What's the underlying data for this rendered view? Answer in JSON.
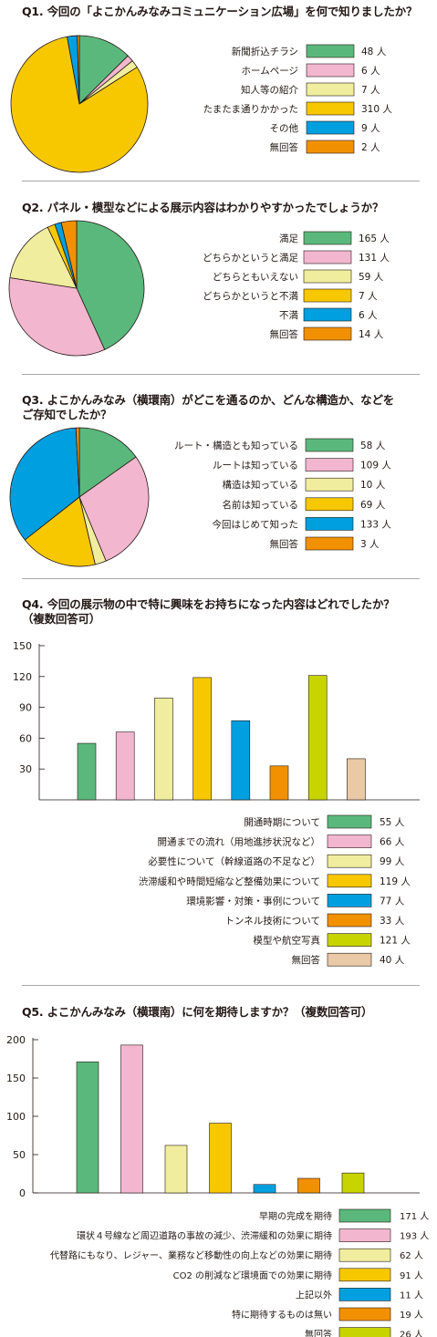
{
  "colors": {
    "green": "#5bb87c",
    "pink": "#f2b6cf",
    "yellow_light": "#f0ee9e",
    "yellow": "#f7c800",
    "blue": "#009fe0",
    "orange": "#f29100",
    "lime": "#c8d400",
    "beige": "#e9c9a6"
  },
  "unit": "人",
  "q1": {
    "title": "Q1. 今回の「よこかんみなみコミュニケーション広場」を何で知りましたか？",
    "chart_data": {
      "type": "pie",
      "categories": [
        "新聞折込チラシ",
        "ホームページ",
        "知人等の紹介",
        "たまたま通りかかった",
        "その他",
        "無回答"
      ],
      "values": [
        48,
        6,
        7,
        310,
        9,
        2
      ],
      "value_labels": [
        "48 人",
        "6 人",
        "7 人",
        "310 人",
        "9 人",
        "2 人"
      ],
      "colors": [
        "#5bb87c",
        "#f2b6cf",
        "#f0ee9e",
        "#f7c800",
        "#009fe0",
        "#f29100"
      ]
    }
  },
  "q2": {
    "title": "Q2. パネル・模型などによる展示内容はわかりやすかったでしょうか？",
    "chart_data": {
      "type": "pie",
      "categories": [
        "満足",
        "どちらかというと満足",
        "どちらともいえない",
        "どちらかというと不満",
        "不満",
        "無回答"
      ],
      "values": [
        165,
        131,
        59,
        7,
        6,
        14
      ],
      "value_labels": [
        "165 人",
        "131 人",
        "59 人",
        "7 人",
        "6 人",
        "14 人"
      ],
      "colors": [
        "#5bb87c",
        "#f2b6cf",
        "#f0ee9e",
        "#f7c800",
        "#009fe0",
        "#f29100"
      ]
    }
  },
  "q3": {
    "title": "Q3. よこかんみなみ（横環南）がどこを通るのか、どんな構造か、などを\nご存知でしたか？",
    "chart_data": {
      "type": "pie",
      "categories": [
        "ルート・構造とも知っている",
        "ルートは知っている",
        "構造は知っている",
        "名前は知っている",
        "今回はじめて知った",
        "無回答"
      ],
      "values": [
        58,
        109,
        10,
        69,
        133,
        3
      ],
      "value_labels": [
        "58 人",
        "109 人",
        "10 人",
        "69 人",
        "133 人",
        "3 人"
      ],
      "colors": [
        "#5bb87c",
        "#f2b6cf",
        "#f0ee9e",
        "#f7c800",
        "#009fe0",
        "#f29100"
      ]
    }
  },
  "q4": {
    "title": "Q4. 今回の展示物の中で特に興味をお持ちになった内容はどれでしたか？\n（複数回答可）",
    "chart_data": {
      "type": "bar",
      "categories": [
        "開通時期について",
        "開通までの流れ（用地進捗状況など）",
        "必要性について（幹線道路の不足など）",
        "渋滞緩和や時間短縮など整備効果について",
        "環境影響・対策・事例について",
        "トンネル技術について",
        "模型や航空写真",
        "無回答"
      ],
      "values": [
        55,
        66,
        99,
        119,
        77,
        33,
        121,
        40
      ],
      "value_labels": [
        "55 人",
        "66 人",
        "99 人",
        "119 人",
        "77 人",
        "33 人",
        "121 人",
        "40 人"
      ],
      "colors": [
        "#5bb87c",
        "#f2b6cf",
        "#f0ee9e",
        "#f7c800",
        "#009fe0",
        "#f29100",
        "#c8d400",
        "#e9c9a6"
      ],
      "ylim": [
        0,
        150
      ],
      "yticks": [
        "150",
        "120",
        "90",
        "60",
        "30"
      ],
      "ytick_values": [
        150,
        120,
        90,
        60,
        30
      ]
    }
  },
  "q5": {
    "title": "Q5. よこかんみなみ（横環南）に何を期待しますか？（複数回答可）",
    "chart_data": {
      "type": "bar",
      "categories": [
        "早期の完成を期待",
        "環状４号線など周辺道路の事故の減少、渋滞緩和の効果に期待",
        "代替路にもなり、レジャー、業務など移動性の向上などの効果に期待",
        "CO2 の削減など環境面での効果に期待",
        "上記以外",
        "特に期待するものは無い",
        "無回答"
      ],
      "values": [
        171,
        193,
        62,
        91,
        11,
        19,
        26
      ],
      "value_labels": [
        "171 人",
        "193 人",
        "62 人",
        "91 人",
        "11 人",
        "19 人",
        "26 人"
      ],
      "colors": [
        "#5bb87c",
        "#f2b6cf",
        "#f0ee9e",
        "#f7c800",
        "#009fe0",
        "#f29100",
        "#c8d400"
      ],
      "ylim": [
        0,
        200
      ],
      "yticks": [
        "200",
        "150",
        "100",
        "50",
        "0"
      ],
      "ytick_values": [
        200,
        150,
        100,
        50,
        0
      ]
    }
  }
}
